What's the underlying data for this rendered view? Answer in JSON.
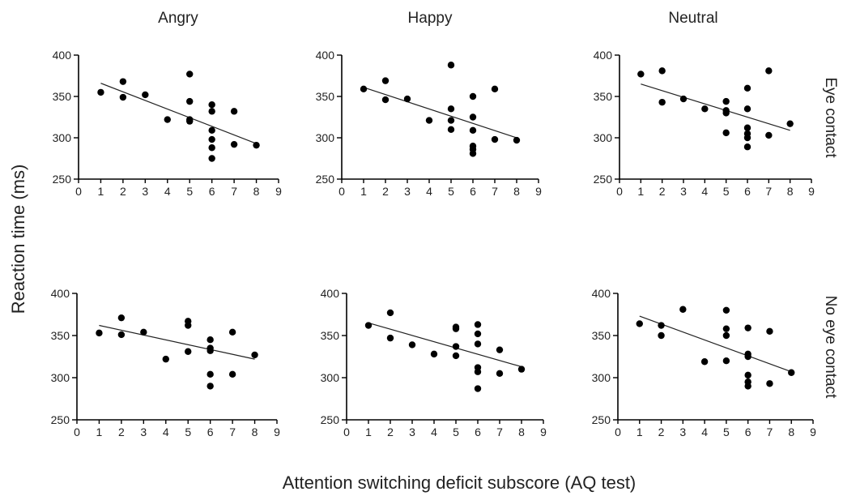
{
  "figure": {
    "ylabel": "Reaction time (ms)",
    "xlabel": "Attention switching deficit subscore (AQ test)",
    "column_titles": [
      "Angry",
      "Happy",
      "Neutral"
    ],
    "row_labels": [
      "Eye contact",
      "No eye contact"
    ]
  },
  "chart_data": [
    {
      "type": "scatter",
      "title": "Angry",
      "condition": "Eye contact",
      "xlim": [
        0,
        9
      ],
      "ylim": [
        250,
        400
      ],
      "xticks": [
        0,
        1,
        2,
        3,
        4,
        5,
        6,
        7,
        8,
        9
      ],
      "yticks": [
        250,
        300,
        350,
        400
      ],
      "points": [
        [
          1,
          355
        ],
        [
          2,
          368
        ],
        [
          2,
          349
        ],
        [
          3,
          352
        ],
        [
          4,
          322
        ],
        [
          5,
          377
        ],
        [
          5,
          344
        ],
        [
          5,
          322
        ],
        [
          5,
          320
        ],
        [
          6,
          340
        ],
        [
          6,
          332
        ],
        [
          6,
          309
        ],
        [
          6,
          298
        ],
        [
          6,
          288
        ],
        [
          6,
          275
        ],
        [
          7,
          332
        ],
        [
          7,
          292
        ],
        [
          8,
          291
        ]
      ],
      "trendline": [
        [
          1,
          366
        ],
        [
          8,
          293
        ]
      ]
    },
    {
      "type": "scatter",
      "title": "Happy",
      "condition": "Eye contact",
      "xlim": [
        0,
        9
      ],
      "ylim": [
        250,
        400
      ],
      "xticks": [
        0,
        1,
        2,
        3,
        4,
        5,
        6,
        7,
        8,
        9
      ],
      "yticks": [
        250,
        300,
        350,
        400
      ],
      "points": [
        [
          1,
          359
        ],
        [
          2,
          369
        ],
        [
          2,
          346
        ],
        [
          3,
          347
        ],
        [
          4,
          321
        ],
        [
          5,
          388
        ],
        [
          5,
          335
        ],
        [
          5,
          321
        ],
        [
          5,
          310
        ],
        [
          6,
          350
        ],
        [
          6,
          325
        ],
        [
          6,
          309
        ],
        [
          6,
          290
        ],
        [
          6,
          286
        ],
        [
          6,
          281
        ],
        [
          7,
          359
        ],
        [
          7,
          298
        ],
        [
          8,
          297
        ]
      ],
      "trendline": [
        [
          1,
          361
        ],
        [
          8,
          300
        ]
      ]
    },
    {
      "type": "scatter",
      "title": "Neutral",
      "condition": "Eye contact",
      "xlim": [
        0,
        9
      ],
      "ylim": [
        250,
        400
      ],
      "xticks": [
        0,
        1,
        2,
        3,
        4,
        5,
        6,
        7,
        8,
        9
      ],
      "yticks": [
        250,
        300,
        350,
        400
      ],
      "points": [
        [
          1,
          377
        ],
        [
          2,
          381
        ],
        [
          2,
          343
        ],
        [
          3,
          347
        ],
        [
          4,
          335
        ],
        [
          5,
          344
        ],
        [
          5,
          333
        ],
        [
          5,
          330
        ],
        [
          5,
          306
        ],
        [
          6,
          360
        ],
        [
          6,
          335
        ],
        [
          6,
          312
        ],
        [
          6,
          305
        ],
        [
          6,
          300
        ],
        [
          6,
          289
        ],
        [
          7,
          381
        ],
        [
          7,
          303
        ],
        [
          8,
          317
        ]
      ],
      "trendline": [
        [
          1,
          365
        ],
        [
          8,
          309
        ]
      ]
    },
    {
      "type": "scatter",
      "title": "Angry",
      "condition": "No eye contact",
      "xlim": [
        0,
        9
      ],
      "ylim": [
        250,
        400
      ],
      "xticks": [
        0,
        1,
        2,
        3,
        4,
        5,
        6,
        7,
        8,
        9
      ],
      "yticks": [
        250,
        300,
        350,
        400
      ],
      "points": [
        [
          1,
          353
        ],
        [
          2,
          371
        ],
        [
          2,
          351
        ],
        [
          3,
          354
        ],
        [
          4,
          322
        ],
        [
          5,
          367
        ],
        [
          5,
          362
        ],
        [
          5,
          331
        ],
        [
          6,
          345
        ],
        [
          6,
          335
        ],
        [
          6,
          332
        ],
        [
          6,
          304
        ],
        [
          6,
          290
        ],
        [
          7,
          354
        ],
        [
          7,
          304
        ],
        [
          8,
          327
        ]
      ],
      "trendline": [
        [
          1,
          362
        ],
        [
          8,
          322
        ]
      ]
    },
    {
      "type": "scatter",
      "title": "Happy",
      "condition": "No eye contact",
      "xlim": [
        0,
        9
      ],
      "ylim": [
        250,
        400
      ],
      "xticks": [
        0,
        1,
        2,
        3,
        4,
        5,
        6,
        7,
        8,
        9
      ],
      "yticks": [
        250,
        300,
        350,
        400
      ],
      "points": [
        [
          1,
          362
        ],
        [
          2,
          377
        ],
        [
          2,
          347
        ],
        [
          3,
          339
        ],
        [
          4,
          328
        ],
        [
          5,
          360
        ],
        [
          5,
          358
        ],
        [
          5,
          337
        ],
        [
          5,
          326
        ],
        [
          6,
          363
        ],
        [
          6,
          352
        ],
        [
          6,
          340
        ],
        [
          6,
          312
        ],
        [
          6,
          307
        ],
        [
          6,
          287
        ],
        [
          7,
          333
        ],
        [
          7,
          305
        ],
        [
          8,
          310
        ]
      ],
      "trendline": [
        [
          1,
          365
        ],
        [
          8,
          313
        ]
      ]
    },
    {
      "type": "scatter",
      "title": "Neutral",
      "condition": "No eye contact",
      "xlim": [
        0,
        9
      ],
      "ylim": [
        250,
        400
      ],
      "xticks": [
        0,
        1,
        2,
        3,
        4,
        5,
        6,
        7,
        8,
        9
      ],
      "yticks": [
        250,
        300,
        350,
        400
      ],
      "points": [
        [
          1,
          364
        ],
        [
          2,
          362
        ],
        [
          2,
          350
        ],
        [
          3,
          381
        ],
        [
          4,
          319
        ],
        [
          5,
          380
        ],
        [
          5,
          358
        ],
        [
          5,
          350
        ],
        [
          5,
          320
        ],
        [
          6,
          359
        ],
        [
          6,
          328
        ],
        [
          6,
          325
        ],
        [
          6,
          303
        ],
        [
          6,
          295
        ],
        [
          6,
          290
        ],
        [
          7,
          355
        ],
        [
          7,
          293
        ],
        [
          8,
          306
        ]
      ],
      "trendline": [
        [
          1,
          373
        ],
        [
          8,
          307
        ]
      ]
    }
  ]
}
